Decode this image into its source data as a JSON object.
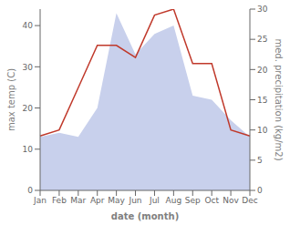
{
  "chart_data": {
    "type": "combo",
    "xlabel": "date (month)",
    "ylabel": "max temp (C)",
    "y2label": "med. precipitation (kg/m2)",
    "categories": [
      "Jan",
      "Feb",
      "Mar",
      "Apr",
      "May",
      "Jun",
      "Jul",
      "Aug",
      "Sep",
      "Oct",
      "Nov",
      "Dec"
    ],
    "series": [
      {
        "type": "area",
        "color": "#c8d0ec",
        "values": [
          13,
          14,
          13,
          20,
          43,
          33,
          38,
          40,
          23,
          22,
          17,
          13
        ]
      },
      {
        "type": "line",
        "color": "#c0392b",
        "axis": "y2",
        "values": [
          9,
          10,
          17,
          24,
          24,
          22,
          29,
          30,
          21,
          21,
          10,
          9
        ]
      }
    ],
    "ylim": [
      0,
      44
    ],
    "yticks": [
      0,
      10,
      20,
      30,
      40
    ],
    "y2lim": [
      0,
      30
    ],
    "y2ticks": [
      0,
      5,
      10,
      15,
      20,
      25,
      30
    ],
    "grid": false
  }
}
